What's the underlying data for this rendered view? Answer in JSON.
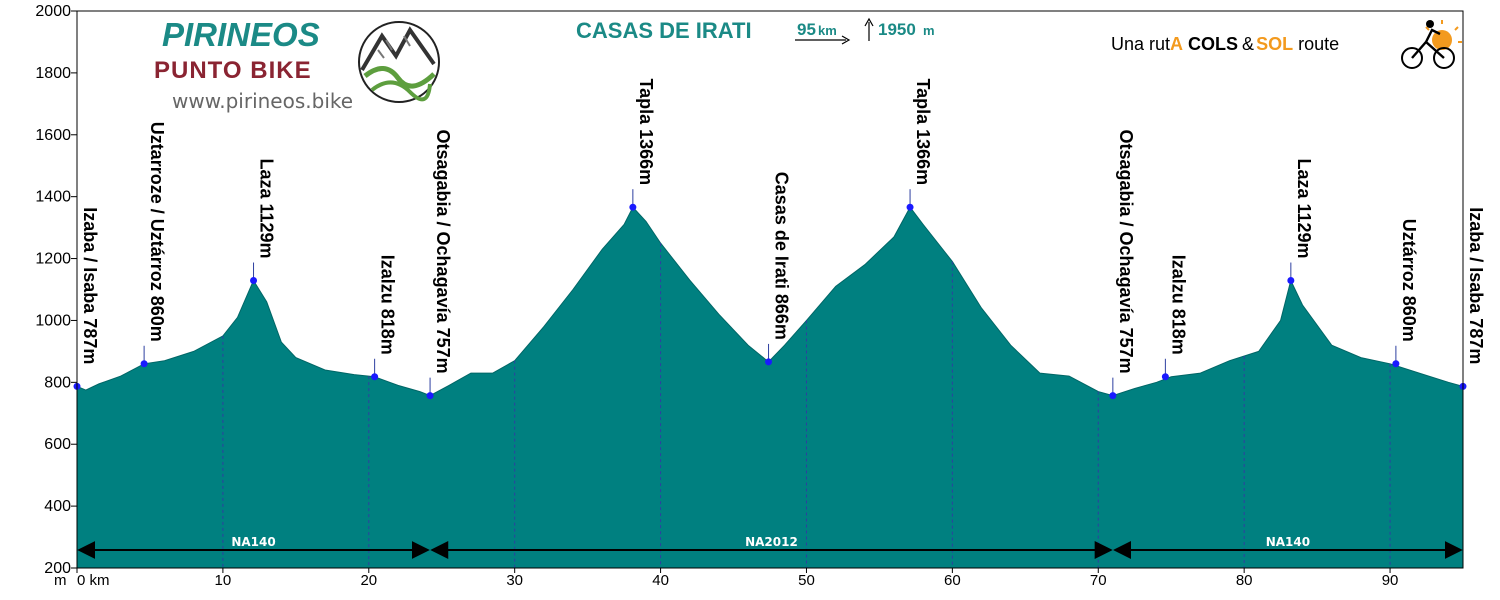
{
  "header": {
    "title": "CASAS DE IRATI",
    "distance": "95",
    "distance_unit": "km",
    "climb": "1950",
    "climb_unit": "m"
  },
  "branding": {
    "logo_name": "PIRINEOS",
    "logo_sub": "PUNTO BIKE",
    "website": "www.pirineos.bike",
    "ruta_prefix": "Una rut",
    "ruta_a": "A",
    "ruta_cols": "COLS",
    "ruta_amp": "&",
    "ruta_sol": "SOL",
    "ruta_route": "route",
    "colors": {
      "teal": "#1b8a86",
      "maroon": "#8a2432",
      "orange": "#f39a1e"
    }
  },
  "chart_data": {
    "type": "area",
    "xlabel": "km",
    "ylabel": "m",
    "xlim": [
      0,
      95
    ],
    "ylim": [
      200,
      2000
    ],
    "xticks": [
      0,
      10,
      20,
      30,
      40,
      50,
      60,
      70,
      80,
      90
    ],
    "xtick_labels": [
      "0 km",
      "10",
      "20",
      "30",
      "40",
      "50",
      "60",
      "70",
      "80",
      "90"
    ],
    "yticks": [
      200,
      400,
      600,
      800,
      1000,
      1200,
      1400,
      1600,
      1800,
      2000
    ],
    "fill_color": "#008080",
    "grid": false,
    "profile": {
      "x": [
        0,
        0.6,
        1.5,
        3,
        4.6,
        6,
        8,
        10,
        11,
        12.1,
        13,
        14,
        15,
        17,
        19,
        20.4,
        22,
        23.5,
        24.2,
        25.5,
        27,
        28.5,
        30,
        32,
        34,
        36,
        37.5,
        38.1,
        39,
        40,
        42,
        44,
        46,
        47.4,
        48.5,
        50,
        52,
        54,
        56,
        57.1,
        58,
        60,
        62,
        64,
        66,
        68,
        70,
        71,
        72.5,
        74,
        75,
        77,
        79,
        81,
        82.5,
        83.2,
        84,
        86,
        88,
        90,
        92,
        94,
        95
      ],
      "y": [
        787,
        775,
        795,
        820,
        860,
        870,
        900,
        950,
        1010,
        1129,
        1060,
        930,
        880,
        840,
        825,
        818,
        790,
        770,
        757,
        790,
        830,
        830,
        870,
        980,
        1100,
        1230,
        1310,
        1366,
        1320,
        1250,
        1130,
        1020,
        920,
        866,
        920,
        1000,
        1110,
        1180,
        1270,
        1366,
        1310,
        1190,
        1040,
        920,
        830,
        820,
        770,
        757,
        780,
        800,
        818,
        830,
        870,
        900,
        1000,
        1129,
        1050,
        920,
        880,
        860,
        830,
        800,
        787
      ]
    },
    "markers": [
      {
        "label": "Izaba / Isaba 787m",
        "x": 0,
        "y": 787
      },
      {
        "label": "Uztarroze / Uztárroz 860m",
        "x": 4.6,
        "y": 860
      },
      {
        "label": "Laza 1129m",
        "x": 12.1,
        "y": 1129
      },
      {
        "label": "Izalzu 818m",
        "x": 20.4,
        "y": 818
      },
      {
        "label": "Otsagabia / Ochagavía 757m",
        "x": 24.2,
        "y": 757
      },
      {
        "label": "Tapla 1366m",
        "x": 38.1,
        "y": 1366
      },
      {
        "label": "Casas de Irati 866m",
        "x": 47.4,
        "y": 866
      },
      {
        "label": "Tapla 1366m",
        "x": 57.1,
        "y": 1366
      },
      {
        "label": "Otsagabia / Ochagavía 757m",
        "x": 71,
        "y": 757
      },
      {
        "label": "Izalzu 818m",
        "x": 74.6,
        "y": 818
      },
      {
        "label": "Laza 1129m",
        "x": 83.2,
        "y": 1129
      },
      {
        "label": "Uztárroz 860m",
        "x": 90.4,
        "y": 860
      },
      {
        "label": "Izaba / Isaba 787m",
        "x": 95,
        "y": 787
      }
    ],
    "roads": [
      {
        "name": "NA140",
        "from": 0,
        "to": 24.2
      },
      {
        "name": "NA2012",
        "from": 24.2,
        "to": 71
      },
      {
        "name": "NA140",
        "from": 71,
        "to": 95
      }
    ]
  }
}
